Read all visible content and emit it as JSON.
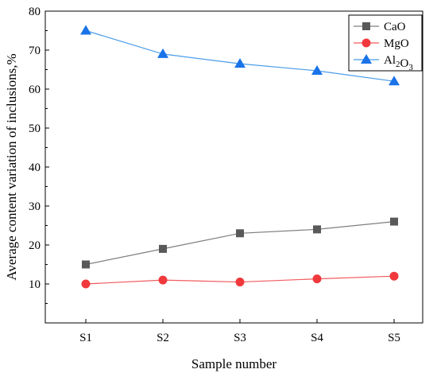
{
  "chart_data": {
    "type": "line",
    "title": "",
    "xlabel": "Sample number",
    "ylabel": "Average content variation of inclusions,%",
    "categories": [
      "S1",
      "S2",
      "S3",
      "S4",
      "S5"
    ],
    "ylim": [
      0,
      80
    ],
    "yticks": [
      "10",
      "20",
      "30",
      "40",
      "50",
      "60",
      "70",
      "80"
    ],
    "grid": false,
    "legend_position": "top-right",
    "series": [
      {
        "name": "CaO",
        "legend": {
          "main": "CaO",
          "sub": "",
          "tail": ""
        },
        "marker": "square",
        "color": "#595959",
        "line_color": "#7f7f7f",
        "values": [
          15,
          19,
          23,
          24,
          26
        ]
      },
      {
        "name": "MgO",
        "legend": {
          "main": "MgO",
          "sub": "",
          "tail": ""
        },
        "marker": "circle",
        "color": "#f0393c",
        "line_color": "#f25b5e",
        "values": [
          10,
          11,
          10.5,
          11.3,
          12
        ]
      },
      {
        "name": "Al2O3",
        "legend": {
          "main": "Al",
          "sub": "2",
          "tail": "O",
          "sub2": "3"
        },
        "marker": "triangle",
        "color": "#1a73e8",
        "line_color": "#4a9ce8",
        "values": [
          75,
          69,
          66.5,
          64.7,
          62
        ]
      }
    ]
  }
}
